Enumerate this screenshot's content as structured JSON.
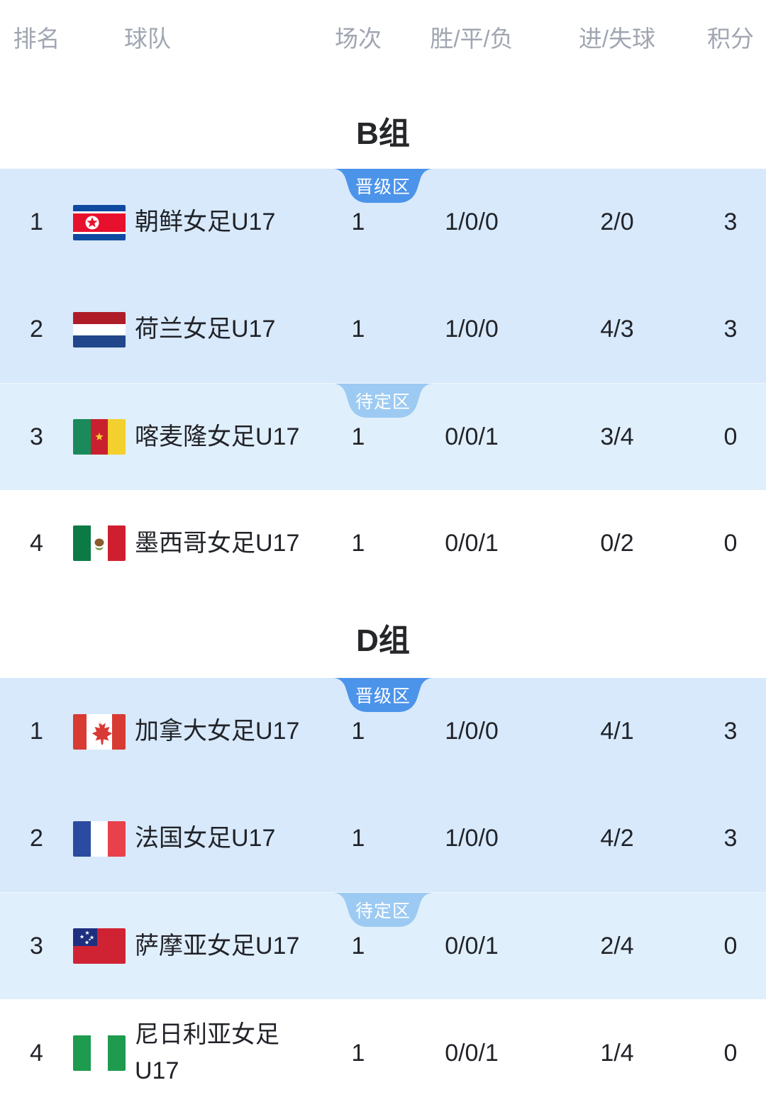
{
  "table": {
    "columns": [
      {
        "id": "rank",
        "label": "排名"
      },
      {
        "id": "team",
        "label": "球队"
      },
      {
        "id": "played",
        "label": "场次"
      },
      {
        "id": "wdl",
        "label": "胜/平/负"
      },
      {
        "id": "goals",
        "label": "进/失球"
      },
      {
        "id": "points",
        "label": "积分"
      }
    ]
  },
  "badges": {
    "promotion": "晋级区",
    "pending": "待定区"
  },
  "colors": {
    "badge_promotion": "#4c93ea",
    "badge_pending": "#9ccaf2",
    "section_promotion_bg": "#d7e9fb",
    "section_pending_bg": "#e0effc",
    "header_text": "#a0a6b1",
    "row_text": "#212329",
    "title_text": "#26272b"
  },
  "groups": [
    {
      "title": "B组",
      "sections": [
        {
          "zone": "promotion",
          "rows": [
            {
              "rank": "1",
              "flag": "north-korea",
              "team": "朝鲜女足U17",
              "played": "1",
              "wdl": "1/0/0",
              "goals": "2/0",
              "points": "3"
            },
            {
              "rank": "2",
              "flag": "netherlands",
              "team": "荷兰女足U17",
              "played": "1",
              "wdl": "1/0/0",
              "goals": "4/3",
              "points": "3"
            }
          ]
        },
        {
          "zone": "pending",
          "rows": [
            {
              "rank": "3",
              "flag": "cameroon",
              "team": "喀麦隆女足U17",
              "played": "1",
              "wdl": "0/0/1",
              "goals": "3/4",
              "points": "0"
            }
          ]
        },
        {
          "zone": "plain",
          "rows": [
            {
              "rank": "4",
              "flag": "mexico",
              "team": "墨西哥女足U17",
              "played": "1",
              "wdl": "0/0/1",
              "goals": "0/2",
              "points": "0"
            }
          ]
        }
      ]
    },
    {
      "title": "D组",
      "sections": [
        {
          "zone": "promotion",
          "rows": [
            {
              "rank": "1",
              "flag": "canada",
              "team": "加拿大女足U17",
              "played": "1",
              "wdl": "1/0/0",
              "goals": "4/1",
              "points": "3"
            },
            {
              "rank": "2",
              "flag": "france",
              "team": "法国女足U17",
              "played": "1",
              "wdl": "1/0/0",
              "goals": "4/2",
              "points": "3"
            }
          ]
        },
        {
          "zone": "pending",
          "rows": [
            {
              "rank": "3",
              "flag": "samoa",
              "team": "萨摩亚女足U17",
              "played": "1",
              "wdl": "0/0/1",
              "goals": "2/4",
              "points": "0"
            }
          ]
        },
        {
          "zone": "plain",
          "rows": [
            {
              "rank": "4",
              "flag": "nigeria",
              "team": "尼日利亚女足U17",
              "played": "1",
              "wdl": "0/0/1",
              "goals": "1/4",
              "points": "0"
            }
          ]
        }
      ]
    }
  ]
}
